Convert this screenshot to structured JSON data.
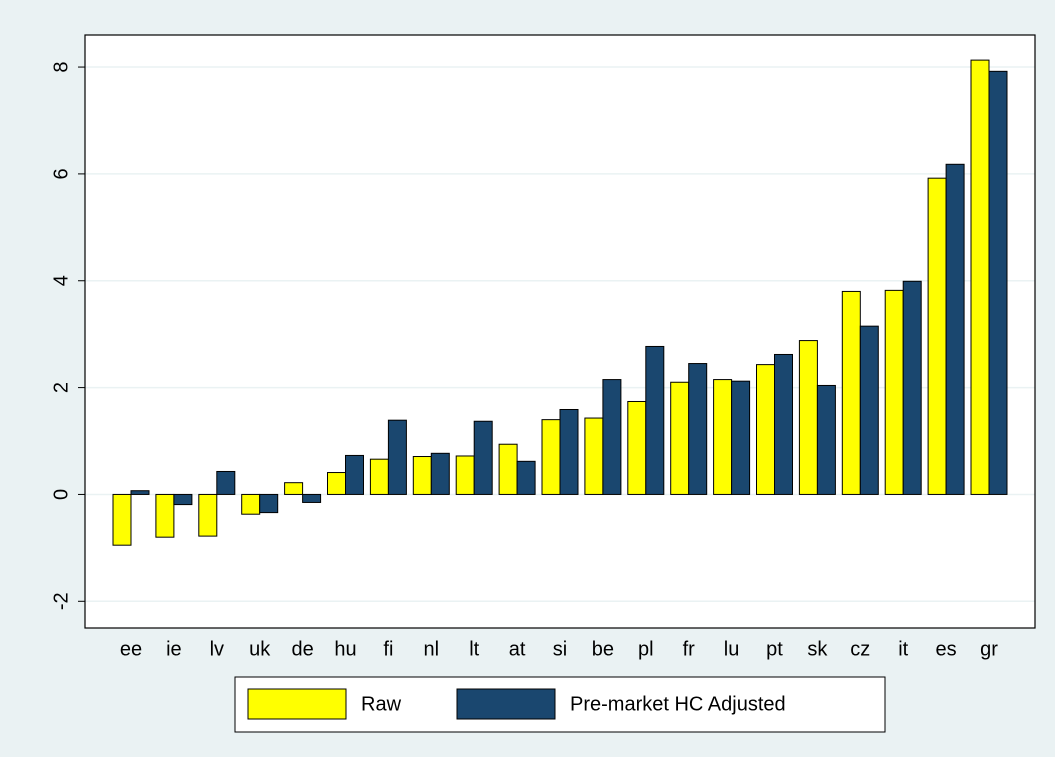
{
  "chart_data": {
    "type": "bar",
    "categories": [
      "ee",
      "ie",
      "lv",
      "uk",
      "de",
      "hu",
      "fi",
      "nl",
      "lt",
      "at",
      "si",
      "be",
      "pl",
      "fr",
      "lu",
      "pt",
      "sk",
      "cz",
      "it",
      "es",
      "gr"
    ],
    "series": [
      {
        "name": "Raw",
        "color": "#ffff00",
        "values": [
          -0.95,
          -0.8,
          -0.78,
          -0.37,
          0.22,
          0.41,
          0.66,
          0.71,
          0.72,
          0.94,
          1.4,
          1.43,
          1.74,
          2.1,
          2.15,
          2.43,
          2.88,
          3.8,
          3.82,
          5.92,
          8.13
        ]
      },
      {
        "name": "Pre-market HC Adjusted",
        "color": "#1a476f",
        "values": [
          0.07,
          -0.19,
          0.43,
          -0.34,
          -0.15,
          0.73,
          1.39,
          0.77,
          1.37,
          0.62,
          1.59,
          2.15,
          2.77,
          2.45,
          2.12,
          2.62,
          2.04,
          3.15,
          3.99,
          6.18,
          7.92
        ]
      }
    ],
    "ylim": [
      -2.5,
      8.6
    ],
    "yticks": [
      -2,
      0,
      2,
      4,
      6,
      8
    ],
    "grid": true,
    "legend": "bottom"
  }
}
